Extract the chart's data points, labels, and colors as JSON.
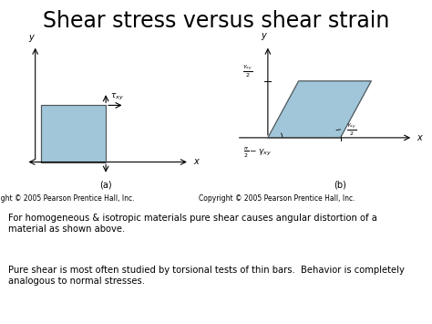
{
  "title": "Shear stress versus shear strain",
  "title_fontsize": 17,
  "bg_color": "#ffffff",
  "fig_width": 4.74,
  "fig_height": 3.55,
  "dpi": 100,
  "box_color": "#7aafc9",
  "box_edge_color": "#555555",
  "label_a": "(a)",
  "label_b": "(b)",
  "copyright_text": "Copyright © 2005 Pearson Prentice Hall, Inc.",
  "para1": "For homogeneous & isotropic materials pure shear causes angular distortion of a\nmaterial as shown above.",
  "para2": "Pure shear is most often studied by torsional tests of thin bars.  Behavior is completely\nanalogous to normal stresses.",
  "small_fontsize": 7,
  "anno_fontsize": 6.5,
  "body_fontsize": 7.2,
  "copy_fontsize": 5.5
}
